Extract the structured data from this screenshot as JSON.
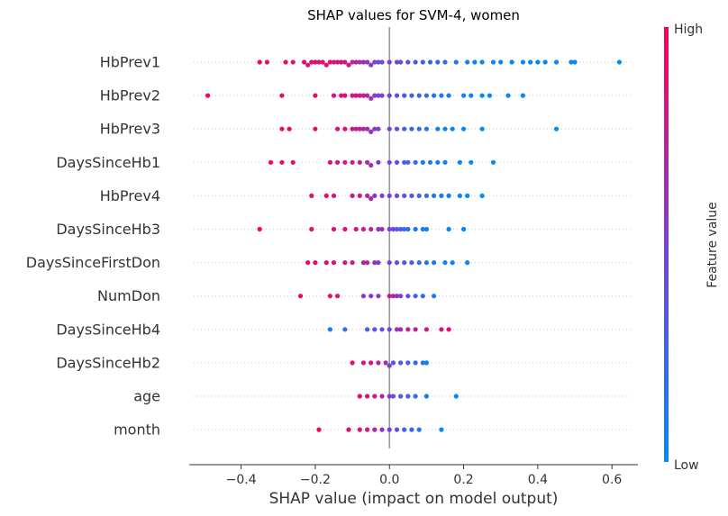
{
  "chart_data": {
    "type": "scatter",
    "title": "SHAP values for SVM-4, women",
    "xlabel": "SHAP value (impact on model output)",
    "ylabel": "",
    "xlim": [
      -0.54,
      0.67
    ],
    "xticks": [
      -0.4,
      -0.2,
      0.0,
      0.2,
      0.4,
      0.6
    ],
    "xtick_labels": [
      "−0.4",
      "−0.2",
      "0.0",
      "0.2",
      "0.4",
      "0.6"
    ],
    "colorbar": {
      "label": "Feature value",
      "high": "High",
      "low": "Low",
      "low_color": "#008afb",
      "mid_color": "#7c3fd6",
      "high_color": "#ff0052"
    },
    "features": [
      {
        "name": "HbPrev1",
        "points": [
          [
            -0.35,
            0.95
          ],
          [
            -0.33,
            0.9
          ],
          [
            -0.28,
            0.92
          ],
          [
            -0.26,
            0.85
          ],
          [
            -0.23,
            0.9
          ],
          [
            -0.22,
            0.85
          ],
          [
            -0.21,
            0.9
          ],
          [
            -0.2,
            0.92
          ],
          [
            -0.19,
            0.88
          ],
          [
            -0.18,
            0.9
          ],
          [
            -0.17,
            0.85
          ],
          [
            -0.16,
            0.9
          ],
          [
            -0.15,
            0.8
          ],
          [
            -0.14,
            0.85
          ],
          [
            -0.13,
            0.9
          ],
          [
            -0.12,
            0.8
          ],
          [
            -0.11,
            0.85
          ],
          [
            -0.1,
            0.7
          ],
          [
            -0.09,
            0.75
          ],
          [
            -0.08,
            0.6
          ],
          [
            -0.07,
            0.65
          ],
          [
            -0.06,
            0.6
          ],
          [
            -0.05,
            0.55
          ],
          [
            -0.04,
            0.5
          ],
          [
            -0.03,
            0.45
          ],
          [
            -0.02,
            0.4
          ],
          [
            0.0,
            0.5
          ],
          [
            0.02,
            0.45
          ],
          [
            0.03,
            0.4
          ],
          [
            0.05,
            0.35
          ],
          [
            0.07,
            0.3
          ],
          [
            0.09,
            0.3
          ],
          [
            0.11,
            0.25
          ],
          [
            0.13,
            0.2
          ],
          [
            0.15,
            0.2
          ],
          [
            0.18,
            0.15
          ],
          [
            0.21,
            0.1
          ],
          [
            0.23,
            0.1
          ],
          [
            0.25,
            0.05
          ],
          [
            0.28,
            0.05
          ],
          [
            0.3,
            0.05
          ],
          [
            0.33,
            0.02
          ],
          [
            0.36,
            0.02
          ],
          [
            0.38,
            0.02
          ],
          [
            0.4,
            0.0
          ],
          [
            0.42,
            0.02
          ],
          [
            0.45,
            0.0
          ],
          [
            0.49,
            0.0
          ],
          [
            0.5,
            0.0
          ],
          [
            0.62,
            0.0
          ]
        ]
      },
      {
        "name": "HbPrev2",
        "points": [
          [
            -0.49,
            0.95
          ],
          [
            -0.29,
            0.9
          ],
          [
            -0.2,
            0.9
          ],
          [
            -0.15,
            0.85
          ],
          [
            -0.13,
            0.9
          ],
          [
            -0.12,
            0.85
          ],
          [
            -0.1,
            0.85
          ],
          [
            -0.09,
            0.8
          ],
          [
            -0.08,
            0.75
          ],
          [
            -0.07,
            0.8
          ],
          [
            -0.06,
            0.7
          ],
          [
            -0.05,
            0.6
          ],
          [
            -0.04,
            0.55
          ],
          [
            -0.03,
            0.5
          ],
          [
            -0.02,
            0.45
          ],
          [
            0.0,
            0.5
          ],
          [
            0.02,
            0.4
          ],
          [
            0.04,
            0.35
          ],
          [
            0.06,
            0.3
          ],
          [
            0.08,
            0.25
          ],
          [
            0.1,
            0.2
          ],
          [
            0.12,
            0.15
          ],
          [
            0.14,
            0.1
          ],
          [
            0.16,
            0.1
          ],
          [
            0.2,
            0.05
          ],
          [
            0.22,
            0.05
          ],
          [
            0.25,
            0.0
          ],
          [
            0.27,
            0.0
          ],
          [
            0.32,
            0.0
          ],
          [
            0.36,
            0.0
          ]
        ]
      },
      {
        "name": "HbPrev3",
        "points": [
          [
            -0.29,
            0.9
          ],
          [
            -0.27,
            0.95
          ],
          [
            -0.2,
            0.9
          ],
          [
            -0.14,
            0.85
          ],
          [
            -0.12,
            0.85
          ],
          [
            -0.1,
            0.8
          ],
          [
            -0.09,
            0.75
          ],
          [
            -0.08,
            0.8
          ],
          [
            -0.07,
            0.7
          ],
          [
            -0.06,
            0.65
          ],
          [
            -0.05,
            0.6
          ],
          [
            -0.04,
            0.55
          ],
          [
            -0.03,
            0.5
          ],
          [
            0.0,
            0.5
          ],
          [
            0.02,
            0.4
          ],
          [
            0.04,
            0.3
          ],
          [
            0.06,
            0.25
          ],
          [
            0.08,
            0.2
          ],
          [
            0.1,
            0.15
          ],
          [
            0.13,
            0.1
          ],
          [
            0.15,
            0.05
          ],
          [
            0.17,
            0.05
          ],
          [
            0.2,
            0.0
          ],
          [
            0.25,
            0.0
          ],
          [
            0.45,
            0.0
          ]
        ]
      },
      {
        "name": "DaysSinceHb1",
        "points": [
          [
            -0.32,
            0.95
          ],
          [
            -0.29,
            0.9
          ],
          [
            -0.26,
            0.9
          ],
          [
            -0.16,
            0.85
          ],
          [
            -0.14,
            0.85
          ],
          [
            -0.12,
            0.8
          ],
          [
            -0.1,
            0.8
          ],
          [
            -0.08,
            0.75
          ],
          [
            -0.06,
            0.7
          ],
          [
            -0.05,
            0.6
          ],
          [
            -0.03,
            0.55
          ],
          [
            0.0,
            0.5
          ],
          [
            0.02,
            0.4
          ],
          [
            0.04,
            0.3
          ],
          [
            0.05,
            0.25
          ],
          [
            0.07,
            0.2
          ],
          [
            0.09,
            0.15
          ],
          [
            0.11,
            0.1
          ],
          [
            0.13,
            0.1
          ],
          [
            0.15,
            0.05
          ],
          [
            0.19,
            0.05
          ],
          [
            0.22,
            0.0
          ],
          [
            0.28,
            0.0
          ]
        ]
      },
      {
        "name": "HbPrev4",
        "points": [
          [
            -0.21,
            0.9
          ],
          [
            -0.17,
            0.95
          ],
          [
            -0.15,
            0.85
          ],
          [
            -0.1,
            0.8
          ],
          [
            -0.08,
            0.8
          ],
          [
            -0.06,
            0.7
          ],
          [
            -0.05,
            0.65
          ],
          [
            -0.04,
            0.6
          ],
          [
            -0.02,
            0.5
          ],
          [
            0.0,
            0.5
          ],
          [
            0.02,
            0.45
          ],
          [
            0.04,
            0.35
          ],
          [
            0.06,
            0.3
          ],
          [
            0.08,
            0.25
          ],
          [
            0.1,
            0.2
          ],
          [
            0.12,
            0.15
          ],
          [
            0.14,
            0.1
          ],
          [
            0.16,
            0.1
          ],
          [
            0.19,
            0.05
          ],
          [
            0.21,
            0.0
          ],
          [
            0.25,
            0.0
          ]
        ]
      },
      {
        "name": "DaysSinceHb3",
        "points": [
          [
            -0.35,
            0.95
          ],
          [
            -0.21,
            0.9
          ],
          [
            -0.15,
            0.85
          ],
          [
            -0.12,
            0.85
          ],
          [
            -0.09,
            0.8
          ],
          [
            -0.07,
            0.75
          ],
          [
            -0.05,
            0.7
          ],
          [
            -0.03,
            0.65
          ],
          [
            -0.02,
            0.6
          ],
          [
            0.0,
            0.5
          ],
          [
            0.01,
            0.4
          ],
          [
            0.02,
            0.35
          ],
          [
            0.03,
            0.3
          ],
          [
            0.04,
            0.25
          ],
          [
            0.05,
            0.2
          ],
          [
            0.07,
            0.15
          ],
          [
            0.09,
            0.1
          ],
          [
            0.1,
            0.05
          ],
          [
            0.16,
            0.05
          ],
          [
            0.2,
            0.0
          ]
        ]
      },
      {
        "name": "DaysSinceFirstDon",
        "points": [
          [
            -0.22,
            0.95
          ],
          [
            -0.2,
            0.9
          ],
          [
            -0.17,
            0.9
          ],
          [
            -0.15,
            0.85
          ],
          [
            -0.12,
            0.8
          ],
          [
            -0.1,
            0.8
          ],
          [
            -0.07,
            0.75
          ],
          [
            -0.06,
            0.7
          ],
          [
            -0.04,
            0.6
          ],
          [
            -0.03,
            0.55
          ],
          [
            0.0,
            0.5
          ],
          [
            0.02,
            0.4
          ],
          [
            0.04,
            0.3
          ],
          [
            0.06,
            0.25
          ],
          [
            0.08,
            0.2
          ],
          [
            0.1,
            0.15
          ],
          [
            0.12,
            0.1
          ],
          [
            0.15,
            0.05
          ],
          [
            0.17,
            0.05
          ],
          [
            0.21,
            0.0
          ]
        ]
      },
      {
        "name": "NumDon",
        "points": [
          [
            -0.24,
            0.95
          ],
          [
            -0.16,
            0.9
          ],
          [
            -0.14,
            0.85
          ],
          [
            -0.07,
            0.6
          ],
          [
            -0.05,
            0.6
          ],
          [
            -0.03,
            0.55
          ],
          [
            0.0,
            0.8
          ],
          [
            0.01,
            0.7
          ],
          [
            0.02,
            0.6
          ],
          [
            0.03,
            0.5
          ],
          [
            0.05,
            0.4
          ],
          [
            0.07,
            0.3
          ],
          [
            0.09,
            0.2
          ],
          [
            0.12,
            0.1
          ]
        ]
      },
      {
        "name": "DaysSinceHb4",
        "points": [
          [
            -0.16,
            0.1
          ],
          [
            -0.12,
            0.2
          ],
          [
            -0.06,
            0.3
          ],
          [
            -0.04,
            0.35
          ],
          [
            -0.02,
            0.4
          ],
          [
            0.0,
            0.5
          ],
          [
            0.02,
            0.6
          ],
          [
            0.03,
            0.65
          ],
          [
            0.05,
            0.7
          ],
          [
            0.07,
            0.75
          ],
          [
            0.1,
            0.8
          ],
          [
            0.14,
            0.85
          ],
          [
            0.16,
            0.9
          ]
        ]
      },
      {
        "name": "DaysSinceHb2",
        "points": [
          [
            -0.1,
            0.9
          ],
          [
            -0.07,
            0.85
          ],
          [
            -0.05,
            0.8
          ],
          [
            -0.03,
            0.7
          ],
          [
            -0.01,
            0.6
          ],
          [
            0.0,
            0.5
          ],
          [
            0.01,
            0.4
          ],
          [
            0.03,
            0.3
          ],
          [
            0.05,
            0.25
          ],
          [
            0.07,
            0.2
          ],
          [
            0.09,
            0.15
          ],
          [
            0.1,
            0.05
          ]
        ]
      },
      {
        "name": "age",
        "points": [
          [
            -0.08,
            0.9
          ],
          [
            -0.06,
            0.85
          ],
          [
            -0.04,
            0.8
          ],
          [
            -0.02,
            0.7
          ],
          [
            0.0,
            0.5
          ],
          [
            0.01,
            0.4
          ],
          [
            0.03,
            0.3
          ],
          [
            0.05,
            0.25
          ],
          [
            0.07,
            0.2
          ],
          [
            0.1,
            0.1
          ],
          [
            0.18,
            0.0
          ]
        ]
      },
      {
        "name": "month",
        "points": [
          [
            -0.19,
            0.95
          ],
          [
            -0.11,
            0.9
          ],
          [
            -0.08,
            0.85
          ],
          [
            -0.06,
            0.8
          ],
          [
            -0.04,
            0.7
          ],
          [
            -0.02,
            0.6
          ],
          [
            0.0,
            0.5
          ],
          [
            0.02,
            0.4
          ],
          [
            0.04,
            0.3
          ],
          [
            0.06,
            0.2
          ],
          [
            0.08,
            0.1
          ],
          [
            0.14,
            0.0
          ]
        ]
      }
    ]
  }
}
